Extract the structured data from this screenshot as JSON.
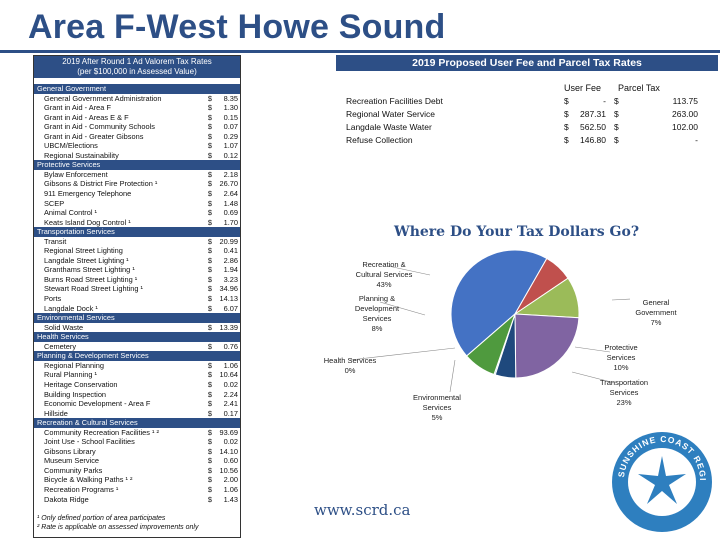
{
  "title": "Area F-West Howe Sound",
  "left_panel": {
    "heading_line1": "2019 After Round 1 Ad Valorem Tax Rates",
    "heading_line2": "(per $100,000 in Assessed Value)",
    "rows": [
      {
        "type": "cat",
        "label": "General Government"
      },
      {
        "type": "item",
        "label": "General Government Administration",
        "dollar": "$",
        "value": "8.35"
      },
      {
        "type": "item",
        "label": "Grant in Aid - Area F",
        "dollar": "$",
        "value": "1.30"
      },
      {
        "type": "item",
        "label": "Grant in Aid - Areas E & F",
        "dollar": "$",
        "value": "0.15"
      },
      {
        "type": "item",
        "label": "Grant in Aid - Community Schools",
        "dollar": "$",
        "value": "0.07"
      },
      {
        "type": "item",
        "label": "Grant in Aid - Greater Gibsons",
        "dollar": "$",
        "value": "0.29"
      },
      {
        "type": "item",
        "label": "UBCM/Elections",
        "dollar": "$",
        "value": "1.07"
      },
      {
        "type": "item",
        "label": "Regional Sustainability",
        "dollar": "$",
        "value": "0.12"
      },
      {
        "type": "cat",
        "label": "Protective Services"
      },
      {
        "type": "item",
        "label": "Bylaw Enforcement",
        "dollar": "$",
        "value": "2.18"
      },
      {
        "type": "item",
        "label": "Gibsons & District Fire Protection ¹",
        "dollar": "$",
        "value": "26.70"
      },
      {
        "type": "item",
        "label": "911 Emergency Telephone",
        "dollar": "$",
        "value": "2.64"
      },
      {
        "type": "item",
        "label": "SCEP",
        "dollar": "$",
        "value": "1.48"
      },
      {
        "type": "item",
        "label": "Animal Control ¹",
        "dollar": "$",
        "value": "0.69"
      },
      {
        "type": "item",
        "label": "Keats Island Dog Control ¹",
        "dollar": "$",
        "value": "1.70"
      },
      {
        "type": "cat",
        "label": "Transportation Services"
      },
      {
        "type": "item",
        "label": "Transit",
        "dollar": "$",
        "value": "20.99"
      },
      {
        "type": "item",
        "label": "Regional Street Lighting",
        "dollar": "$",
        "value": "0.41"
      },
      {
        "type": "item",
        "label": "Langdale Street Lighting ¹",
        "dollar": "$",
        "value": "2.86"
      },
      {
        "type": "item",
        "label": "Granthams Street Lighting ¹",
        "dollar": "$",
        "value": "1.94"
      },
      {
        "type": "item",
        "label": "Burns Road Street Lighting ¹",
        "dollar": "$",
        "value": "3.23"
      },
      {
        "type": "item",
        "label": "Stewart Road Street Lighting ¹",
        "dollar": "$",
        "value": "34.96"
      },
      {
        "type": "item",
        "label": "Ports",
        "dollar": "$",
        "value": "14.13"
      },
      {
        "type": "item",
        "label": "Langdale Dock ¹",
        "dollar": "$",
        "value": "6.07"
      },
      {
        "type": "cat",
        "label": "Environmental Services"
      },
      {
        "type": "item",
        "label": "Solid Waste",
        "dollar": "$",
        "value": "13.39"
      },
      {
        "type": "cat",
        "label": "Health Services"
      },
      {
        "type": "item",
        "label": "Cemetery",
        "dollar": "$",
        "value": "0.76"
      },
      {
        "type": "cat",
        "label": "Planning & Development Services"
      },
      {
        "type": "item",
        "label": "Regional Planning",
        "dollar": "$",
        "value": "1.06"
      },
      {
        "type": "item",
        "label": "Rural Planning ¹",
        "dollar": "$",
        "value": "10.64"
      },
      {
        "type": "item",
        "label": "Heritage Conservation",
        "dollar": "$",
        "value": "0.02"
      },
      {
        "type": "item",
        "label": "Building Inspection",
        "dollar": "$",
        "value": "2.24"
      },
      {
        "type": "item",
        "label": "Economic Development - Area F",
        "dollar": "$",
        "value": "2.41"
      },
      {
        "type": "item",
        "label": "Hillside",
        "dollar": "$",
        "value": "0.17"
      },
      {
        "type": "cat",
        "label": "Recreation & Cultural Services"
      },
      {
        "type": "item",
        "label": "Community Recreation Facilities ¹ ²",
        "dollar": "$",
        "value": "93.69"
      },
      {
        "type": "item",
        "label": "Joint Use - School Facilities",
        "dollar": "$",
        "value": "0.02"
      },
      {
        "type": "item",
        "label": "Gibsons Library",
        "dollar": "$",
        "value": "14.10"
      },
      {
        "type": "item",
        "label": "Museum Service",
        "dollar": "$",
        "value": "0.60"
      },
      {
        "type": "item",
        "label": "Community Parks",
        "dollar": "$",
        "value": "10.56"
      },
      {
        "type": "item",
        "label": "Bicycle & Walking Paths ¹ ²",
        "dollar": "$",
        "value": "2.00"
      },
      {
        "type": "item",
        "label": "Recreation Programs ¹",
        "dollar": "$",
        "value": "1.06"
      },
      {
        "type": "item",
        "label": "Dakota Ridge",
        "dollar": "$",
        "value": "1.43"
      }
    ],
    "footnote1": "¹ Only defined portion of area participates",
    "footnote2": "² Rate is applicable on assessed improvements only"
  },
  "fee_panel": {
    "heading": "2019 Proposed User Fee and Parcel Tax Rates",
    "col_user_fee": "User Fee",
    "col_parcel_tax": "Parcel Tax",
    "rows": [
      {
        "label": "Recreation Facilities Debt",
        "fee_dollar": "$",
        "fee": "-",
        "tax_dollar": "$",
        "tax": "113.75"
      },
      {
        "label": "Regional Water Service",
        "fee_dollar": "$",
        "fee": "287.31",
        "tax_dollar": "$",
        "tax": "263.00"
      },
      {
        "label": "Langdale Waste Water",
        "fee_dollar": "$",
        "fee": "562.50",
        "tax_dollar": "$",
        "tax": "102.00"
      },
      {
        "label": "Refuse Collection",
        "fee_dollar": "$",
        "fee": "146.80",
        "tax_dollar": "$",
        "tax": "-"
      }
    ]
  },
  "chart_data": {
    "type": "pie",
    "title": "Where Do Your Tax Dollars Go?",
    "slices": [
      {
        "label_line1": "Recreation &",
        "label_line2": "Cultural Services",
        "label_line3": "43%",
        "value": 43,
        "color": "#4472c4"
      },
      {
        "label_line1": "General",
        "label_line2": "Government",
        "label_line3": "7%",
        "value": 7,
        "color": "#c0504d"
      },
      {
        "label_line1": "Protective",
        "label_line2": "Services",
        "label_line3": "10%",
        "value": 10,
        "color": "#9bbb59"
      },
      {
        "label_line1": "Transportation",
        "label_line2": "Services",
        "label_line3": "23%",
        "value": 23,
        "color": "#8064a2"
      },
      {
        "label_line1": "Environmental",
        "label_line2": "Services",
        "label_line3": "5%",
        "value": 5,
        "color": "#1f497d"
      },
      {
        "label_line1": "Health Services",
        "label_line2": "0%",
        "label_line3": "",
        "value": 0.3,
        "color": "#4bacc6"
      },
      {
        "label_line1": "Planning &",
        "label_line2": "Development",
        "label_line3": "Services",
        "label_line4": "8%",
        "value": 8,
        "color": "#4f9a3e"
      }
    ]
  },
  "url": "www.scrd.ca",
  "logo_text": "SUNSHINE COAST REGIONAL DISTRICT",
  "colors": {
    "brand": "#2d4f86"
  }
}
